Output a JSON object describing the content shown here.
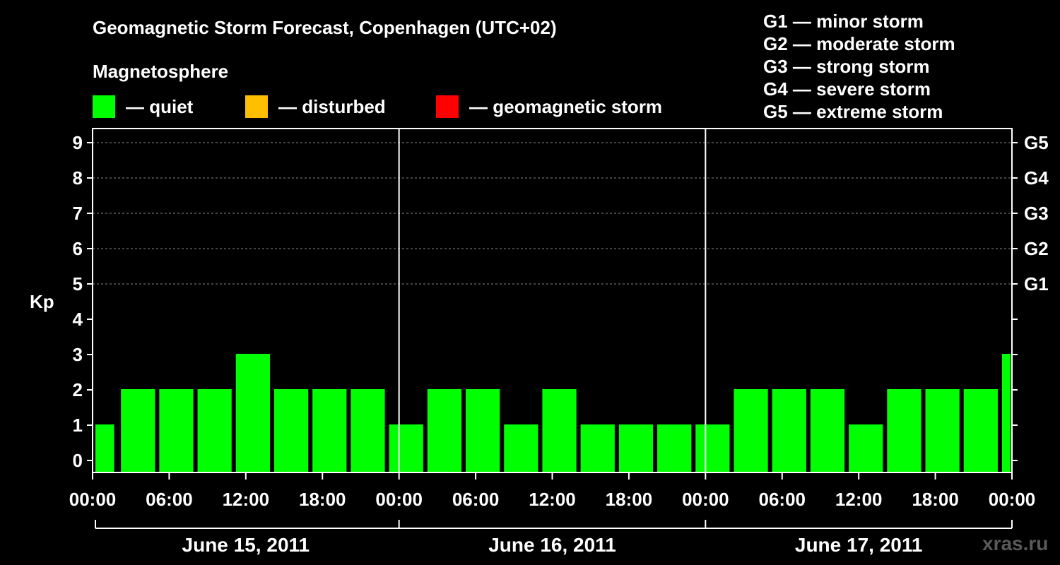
{
  "header": {
    "title": "Geomagnetic Storm Forecast, Copenhagen (UTC+02)",
    "subtitle": "Magnetosphere"
  },
  "legend": [
    {
      "label": "— quiet",
      "color": "#00ff00"
    },
    {
      "label": "— disturbed",
      "color": "#ffbf00"
    },
    {
      "label": "— geomagnetic storm",
      "color": "#ff0000"
    }
  ],
  "storm_levels": [
    "G1 — minor storm",
    "G2 — moderate storm",
    "G3 — strong storm",
    "G4 — severe storm",
    "G5 — extreme storm"
  ],
  "watermark": "xras.ru",
  "chart_data": {
    "type": "bar",
    "ylabel": "Kp",
    "ylim": [
      0,
      9
    ],
    "yticks": [
      "0",
      "1",
      "2",
      "3",
      "4",
      "5",
      "6",
      "7",
      "8",
      "9"
    ],
    "right_ticks": [
      {
        "kp": 5,
        "label": "G1"
      },
      {
        "kp": 6,
        "label": "G2"
      },
      {
        "kp": 7,
        "label": "G3"
      },
      {
        "kp": 8,
        "label": "G4"
      },
      {
        "kp": 9,
        "label": "G5"
      }
    ],
    "grid_lines_kp": [
      5,
      6,
      7,
      8,
      9
    ],
    "x_hours_total": 72,
    "xtick_labels": [
      "00:00",
      "06:00",
      "12:00",
      "18:00",
      "00:00",
      "06:00",
      "12:00",
      "18:00",
      "00:00",
      "06:00",
      "12:00",
      "18:00",
      "00:00"
    ],
    "day_labels": [
      "June 15, 2011",
      "June 16, 2011",
      "June 17, 2011"
    ],
    "bars": [
      {
        "start": 0,
        "end": 1.8,
        "kp": 1
      },
      {
        "start": 2,
        "end": 5,
        "kp": 2
      },
      {
        "start": 5,
        "end": 8,
        "kp": 2
      },
      {
        "start": 8,
        "end": 11,
        "kp": 2
      },
      {
        "start": 11,
        "end": 14,
        "kp": 3
      },
      {
        "start": 14,
        "end": 17,
        "kp": 2
      },
      {
        "start": 17,
        "end": 20,
        "kp": 2
      },
      {
        "start": 20,
        "end": 23,
        "kp": 2
      },
      {
        "start": 23,
        "end": 26,
        "kp": 1
      },
      {
        "start": 26,
        "end": 29,
        "kp": 2
      },
      {
        "start": 29,
        "end": 32,
        "kp": 2
      },
      {
        "start": 32,
        "end": 35,
        "kp": 1
      },
      {
        "start": 35,
        "end": 38,
        "kp": 2
      },
      {
        "start": 38,
        "end": 41,
        "kp": 1
      },
      {
        "start": 41,
        "end": 44,
        "kp": 1
      },
      {
        "start": 44,
        "end": 47,
        "kp": 1
      },
      {
        "start": 47,
        "end": 50,
        "kp": 1
      },
      {
        "start": 50,
        "end": 53,
        "kp": 2
      },
      {
        "start": 53,
        "end": 56,
        "kp": 2
      },
      {
        "start": 56,
        "end": 59,
        "kp": 2
      },
      {
        "start": 59,
        "end": 62,
        "kp": 1
      },
      {
        "start": 62,
        "end": 65,
        "kp": 2
      },
      {
        "start": 65,
        "end": 68,
        "kp": 2
      },
      {
        "start": 68,
        "end": 71,
        "kp": 2
      },
      {
        "start": 71,
        "end": 72,
        "kp": 3
      }
    ],
    "bar_color": "#00ff00"
  }
}
